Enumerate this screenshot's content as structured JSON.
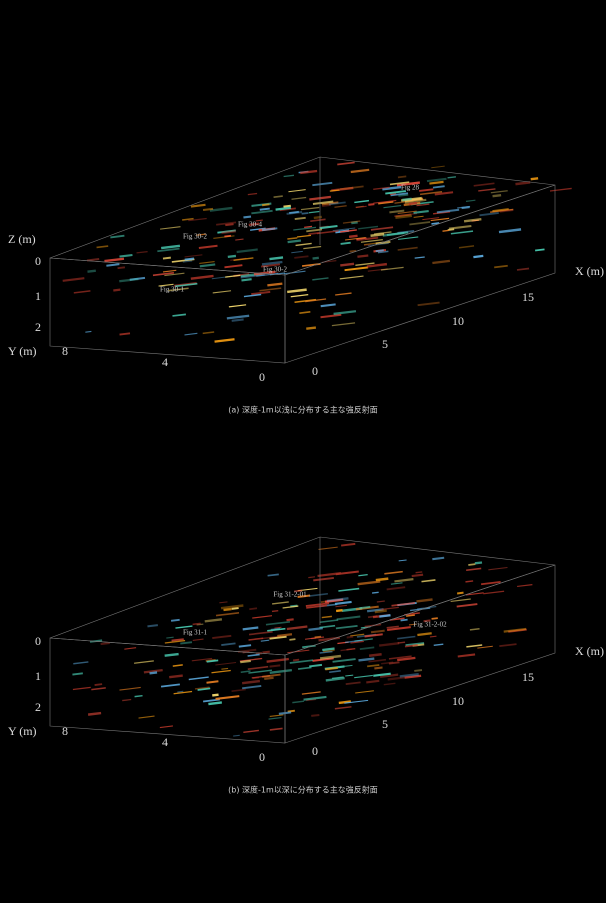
{
  "panels": [
    {
      "z_label": "Z (m)",
      "z_ticks": [
        "0",
        "1",
        "2"
      ],
      "y_label": "Y (m)",
      "y_ticks": [
        "8",
        "4",
        "0"
      ],
      "x_ticks": [
        "0",
        "5",
        "10",
        "15"
      ],
      "x_label": "X (m)",
      "annotations": [
        "Fig 28",
        "Fig 30-4",
        "Fig 30-2",
        "Fig 30-2",
        "Fig 30-1"
      ],
      "caption": "(a) 深度-1m以浅に分布する主な強反射面"
    },
    {
      "z_ticks": [
        "0",
        "1",
        "2"
      ],
      "y_label": "Y (m)",
      "y_ticks": [
        "8",
        "4",
        "0"
      ],
      "x_ticks": [
        "0",
        "5",
        "10",
        "15"
      ],
      "x_label": "X (m)",
      "annotations": [
        "Fig 31-2-01",
        "Fig 31-1",
        "Fig 31-2-02"
      ],
      "caption": "(b) 深度-1m以深に分布する主な強反射面"
    }
  ]
}
